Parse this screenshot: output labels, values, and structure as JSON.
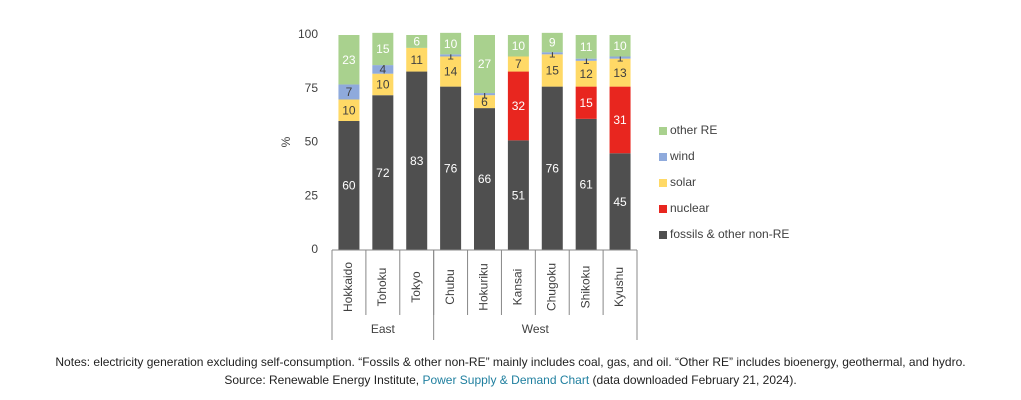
{
  "chart_data": {
    "type": "stacked-bar",
    "y_label": "%",
    "categories": [
      "Hokkaido",
      "Tohoku",
      "Tokyo",
      "Chubu",
      "Hokuriku",
      "Kansai",
      "Chugoku",
      "Shikoku",
      "Kyushu"
    ],
    "category_groups": [
      "East",
      "East",
      "East",
      "West",
      "West",
      "West",
      "West",
      "West",
      "West"
    ],
    "ylim": [
      0,
      100
    ],
    "yticks": [
      0,
      25,
      50,
      75,
      100
    ],
    "grid": false,
    "legend": "right",
    "series": [
      {
        "name": "fossils & other non-RE",
        "color": "#4f4f4f",
        "label_color": "#ffffff",
        "values": [
          60,
          72,
          83,
          76,
          66,
          51,
          76,
          61,
          45
        ]
      },
      {
        "name": "nuclear",
        "color": "#e8261f",
        "label_color": "#ffffff",
        "values": [
          null,
          null,
          null,
          null,
          null,
          32,
          null,
          15,
          31
        ]
      },
      {
        "name": "solar",
        "color": "#ffd966",
        "label_color": "#404040",
        "values": [
          10,
          10,
          11,
          14,
          6,
          7,
          15,
          12,
          13
        ]
      },
      {
        "name": "wind",
        "color": "#8faadc",
        "label_color": "#404040",
        "values": [
          7,
          4,
          null,
          1,
          1,
          null,
          1,
          1,
          1
        ]
      },
      {
        "name": "other RE",
        "color": "#a9d18e",
        "label_color": "#ffffff",
        "values": [
          23,
          15,
          6,
          10,
          27,
          10,
          9,
          11,
          10
        ]
      }
    ],
    "notes": "Notes: electricity generation excluding self-consumption. “Fossils & other non-RE” mainly includes coal, gas, and oil. “Other RE” includes bioenergy, geothermal, and hydro.",
    "source": {
      "prefix": "Source: Renewable Energy Institute,",
      "link": "Power Supply & Demand Chart",
      "suffix": "(data downloaded February 21, 2024)."
    }
  }
}
